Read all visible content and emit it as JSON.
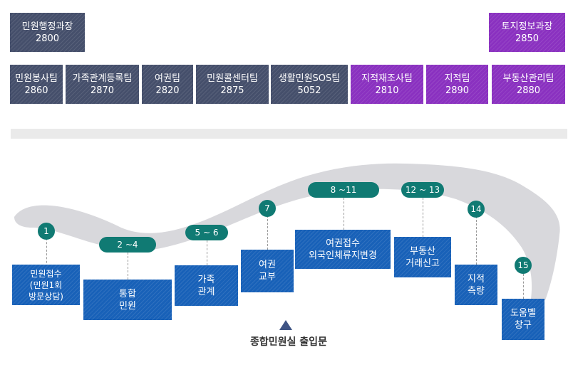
{
  "top_row": {
    "left": {
      "name": "민원행정과장",
      "ext": "2800"
    },
    "right": {
      "name": "토지정보과장",
      "ext": "2850"
    }
  },
  "teams": [
    {
      "name": "민원봉사팀",
      "ext": "2860",
      "color": "navy"
    },
    {
      "name": "가족관계등록팀",
      "ext": "2870",
      "color": "navy"
    },
    {
      "name": "여권팀",
      "ext": "2820",
      "color": "navy"
    },
    {
      "name": "민원콜센터팀",
      "ext": "2875",
      "color": "navy"
    },
    {
      "name": "생활민원SOS팀",
      "ext": "5052",
      "color": "navy"
    },
    {
      "name": "지적재조사팀",
      "ext": "2810",
      "color": "purple"
    },
    {
      "name": "지적팀",
      "ext": "2890",
      "color": "purple"
    },
    {
      "name": "부동산관리팀",
      "ext": "2880",
      "color": "purple"
    }
  ],
  "colors": {
    "navy": "#454f6b",
    "purple": "#8a31c0",
    "window_blue": "#1861b8",
    "marker_teal": "#107a73",
    "path_gray": "#d8d8dc"
  },
  "markers": [
    "1",
    "2 ~4",
    "5 ~ 6",
    "7",
    "8 ~11",
    "12 ~ 13",
    "14",
    "15"
  ],
  "windows": [
    {
      "lines": [
        "민원접수",
        "(민원1회",
        "방문상담)"
      ]
    },
    {
      "lines": [
        "통합",
        "민원"
      ]
    },
    {
      "lines": [
        "가족",
        "관계"
      ]
    },
    {
      "lines": [
        "여권",
        "교부"
      ]
    },
    {
      "lines": [
        "여권접수",
        "외국인체류지변경"
      ]
    },
    {
      "lines": [
        "부동산",
        "거래신고"
      ]
    },
    {
      "lines": [
        "지적",
        "측량"
      ]
    },
    {
      "lines": [
        "도움벨",
        "창구"
      ]
    }
  ],
  "entrance": {
    "label": "종합민원실 출입문",
    "icon": "triangle-up-icon"
  }
}
